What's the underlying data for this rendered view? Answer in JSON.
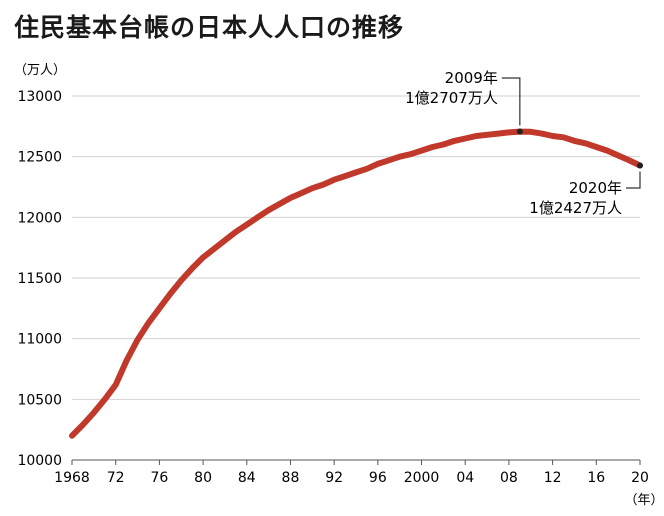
{
  "chart_data": {
    "type": "line",
    "title": "住民基本台帳の日本人人口の推移",
    "y_unit": "（万人）",
    "x_unit": "（年）",
    "ylim": [
      10000,
      13000
    ],
    "y_ticks": [
      10000,
      10500,
      11000,
      11500,
      12000,
      12500,
      13000
    ],
    "xlim": [
      1968,
      2020
    ],
    "x_ticks": [
      {
        "value": 1968,
        "label": "1968"
      },
      {
        "value": 1972,
        "label": "72"
      },
      {
        "value": 1976,
        "label": "76"
      },
      {
        "value": 1980,
        "label": "80"
      },
      {
        "value": 1984,
        "label": "84"
      },
      {
        "value": 1988,
        "label": "88"
      },
      {
        "value": 1992,
        "label": "92"
      },
      {
        "value": 1996,
        "label": "96"
      },
      {
        "value": 2000,
        "label": "2000"
      },
      {
        "value": 2004,
        "label": "04"
      },
      {
        "value": 2008,
        "label": "08"
      },
      {
        "value": 2012,
        "label": "12"
      },
      {
        "value": 2016,
        "label": "16"
      },
      {
        "value": 2020,
        "label": "20"
      }
    ],
    "grid": "horizontal",
    "line_color": "#c0392b",
    "x": [
      1968,
      1969,
      1970,
      1971,
      1972,
      1973,
      1974,
      1975,
      1976,
      1977,
      1978,
      1979,
      1980,
      1981,
      1982,
      1983,
      1984,
      1985,
      1986,
      1987,
      1988,
      1989,
      1990,
      1991,
      1992,
      1993,
      1994,
      1995,
      1996,
      1997,
      1998,
      1999,
      2000,
      2001,
      2002,
      2003,
      2004,
      2005,
      2006,
      2007,
      2008,
      2009,
      2010,
      2011,
      2012,
      2013,
      2014,
      2015,
      2016,
      2017,
      2018,
      2019,
      2020
    ],
    "values": [
      10200,
      10290,
      10390,
      10500,
      10620,
      10820,
      10990,
      11130,
      11250,
      11370,
      11480,
      11580,
      11670,
      11740,
      11810,
      11880,
      11940,
      12000,
      12060,
      12110,
      12160,
      12200,
      12240,
      12270,
      12310,
      12340,
      12370,
      12400,
      12440,
      12470,
      12500,
      12520,
      12550,
      12580,
      12600,
      12630,
      12650,
      12670,
      12680,
      12690,
      12700,
      12707,
      12705,
      12690,
      12670,
      12660,
      12630,
      12610,
      12580,
      12550,
      12510,
      12470,
      12427
    ],
    "annotations": [
      {
        "year": 2009,
        "value": 12707,
        "lines": [
          "2009年",
          "1億2707万人"
        ]
      },
      {
        "year": 2020,
        "value": 12427,
        "lines": [
          "2020年",
          "1億2427万人"
        ]
      }
    ]
  }
}
